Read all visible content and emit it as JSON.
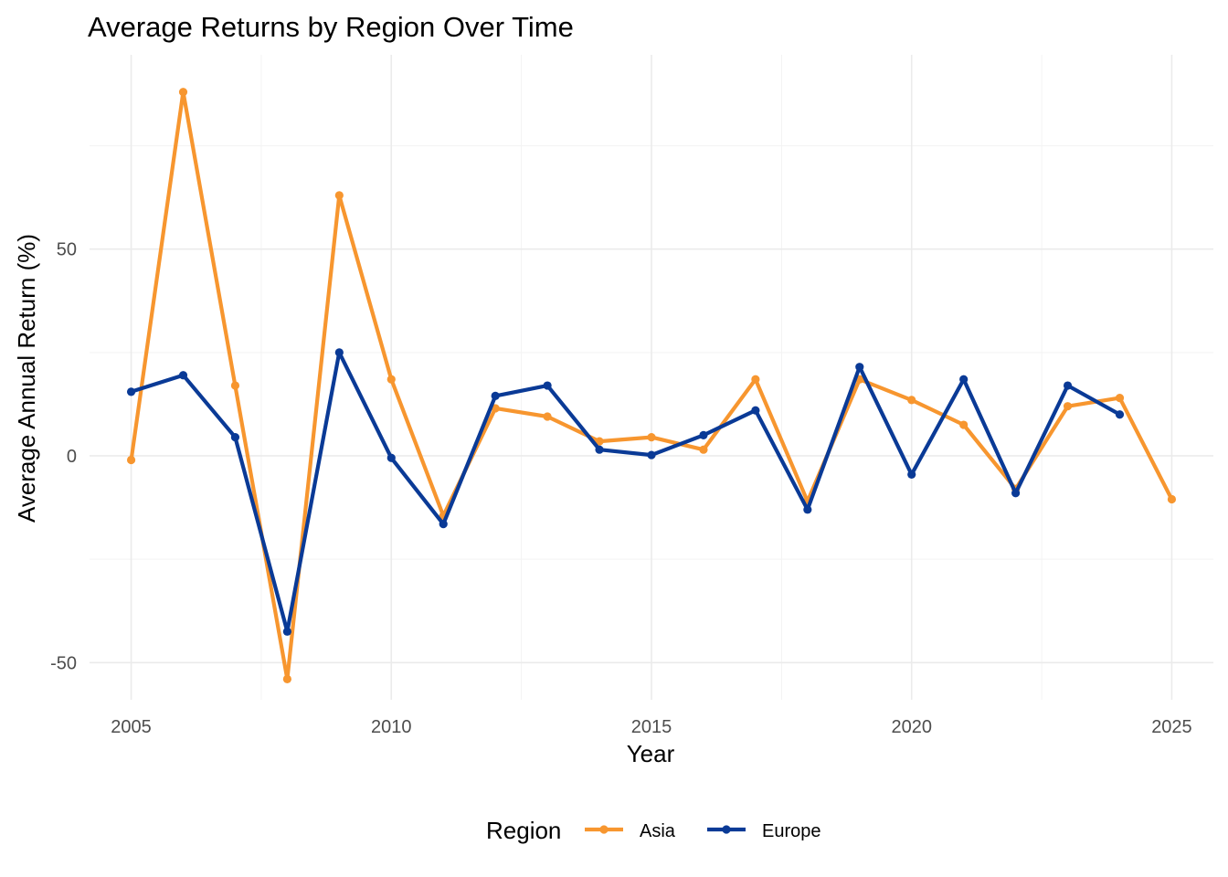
{
  "chart_data": {
    "type": "line",
    "title": "Average Returns by Region Over Time",
    "xlabel": "Year",
    "ylabel": "Average Annual Return (%)",
    "xlim": [
      2004.2,
      2025.8
    ],
    "ylim": [
      -59,
      97
    ],
    "x_ticks": [
      2005,
      2010,
      2015,
      2020,
      2025
    ],
    "y_ticks": [
      -50,
      0,
      50
    ],
    "grid": true,
    "legend": {
      "title": "Region",
      "position": "bottom"
    },
    "series": [
      {
        "name": "Asia",
        "color": "#F7962F",
        "x": [
          2005,
          2006,
          2007,
          2008,
          2009,
          2010,
          2011,
          2012,
          2013,
          2014,
          2015,
          2016,
          2017,
          2018,
          2019,
          2020,
          2021,
          2022,
          2023,
          2024,
          2025
        ],
        "values": [
          -1,
          88,
          17,
          -54,
          63,
          18.5,
          -14.5,
          11.5,
          9.5,
          3.5,
          4.5,
          1.5,
          18.5,
          -11,
          18.5,
          13.5,
          7.5,
          -8,
          12,
          14,
          -10.5
        ]
      },
      {
        "name": "Europe",
        "color": "#0A3A96",
        "x": [
          2005,
          2006,
          2007,
          2008,
          2009,
          2010,
          2011,
          2012,
          2013,
          2014,
          2015,
          2016,
          2017,
          2018,
          2019,
          2020,
          2021,
          2022,
          2023,
          2024
        ],
        "values": [
          15.5,
          19.5,
          4.5,
          -42.5,
          25,
          -0.5,
          -16.5,
          14.5,
          17,
          1.5,
          0.2,
          5,
          11,
          -13,
          21.5,
          -4.5,
          18.5,
          -9,
          17,
          10
        ]
      }
    ]
  }
}
